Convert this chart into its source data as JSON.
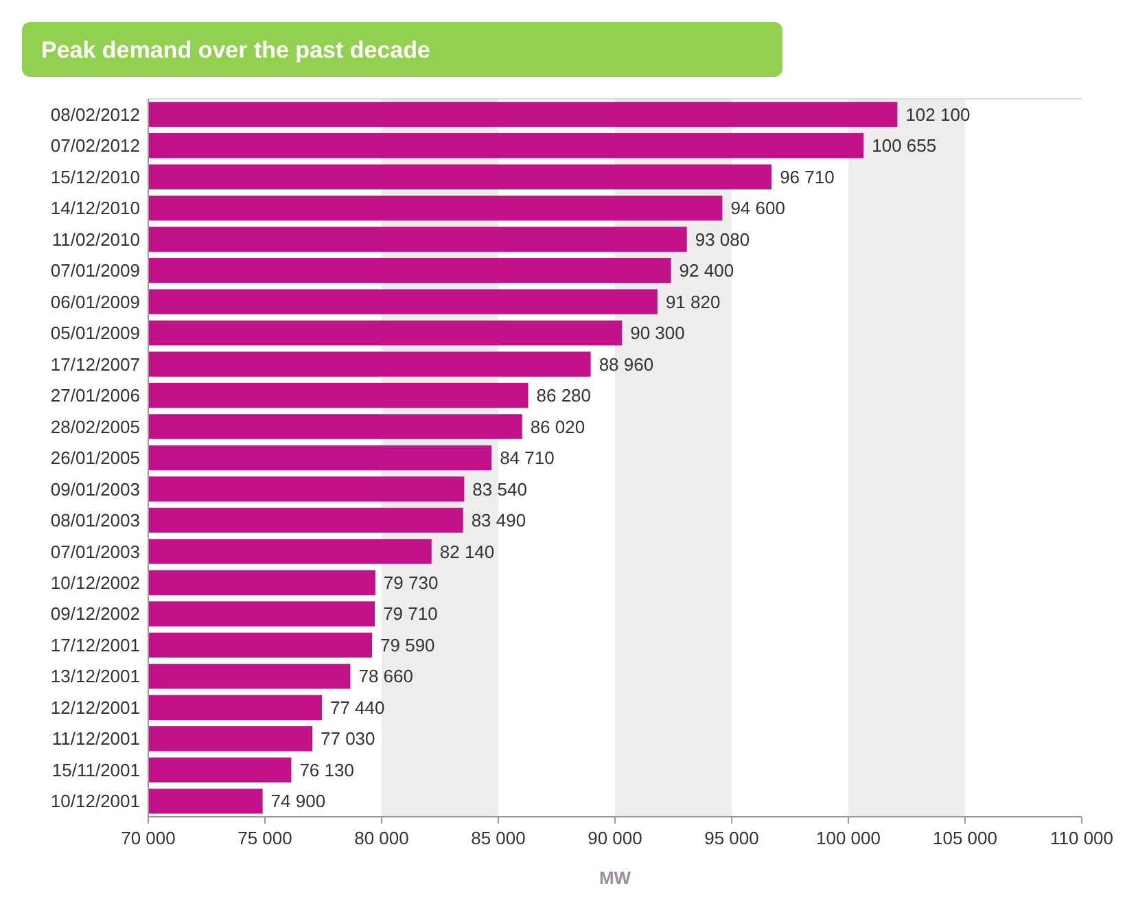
{
  "chart_data": {
    "type": "bar",
    "orientation": "horizontal",
    "title": "Peak demand over the past decade",
    "xlabel": "MW",
    "categories": [
      "08/02/2012",
      "07/02/2012",
      "15/12/2010",
      "14/12/2010",
      "11/02/2010",
      "07/01/2009",
      "06/01/2009",
      "05/01/2009",
      "17/12/2007",
      "27/01/2006",
      "28/02/2005",
      "26/01/2005",
      "09/01/2003",
      "08/01/2003",
      "07/01/2003",
      "10/12/2002",
      "09/12/2002",
      "17/12/2001",
      "13/12/2001",
      "12/12/2001",
      "11/12/2001",
      "15/11/2001",
      "10/12/2001"
    ],
    "values": [
      102100,
      100655,
      96710,
      94600,
      93080,
      92400,
      91820,
      90300,
      88960,
      86280,
      86020,
      84710,
      83540,
      83490,
      82140,
      79730,
      79710,
      79590,
      78660,
      77440,
      77030,
      76130,
      74900
    ],
    "value_labels": [
      "102 100",
      "100 655",
      "96 710",
      "94 600",
      "93 080",
      "92 400",
      "91 820",
      "90 300",
      "88 960",
      "86 280",
      "86 020",
      "84 710",
      "83 540",
      "83 490",
      "82 140",
      "79 730",
      "79 710",
      "79 590",
      "78 660",
      "77 440",
      "77 030",
      "76 130",
      "74 900"
    ],
    "color": "#c2128a",
    "xlim": [
      70000,
      110000
    ],
    "xticks": [
      {
        "value": 70000,
        "label": "70 000"
      },
      {
        "value": 75000,
        "label": "75 000"
      },
      {
        "value": 80000,
        "label": "80 000"
      },
      {
        "value": 85000,
        "label": "85 000"
      },
      {
        "value": 90000,
        "label": "90 000"
      },
      {
        "value": 95000,
        "label": "95 000"
      },
      {
        "value": 100000,
        "label": "100 000"
      },
      {
        "value": 105000,
        "label": "105 000"
      },
      {
        "value": 110000,
        "label": "110 000"
      }
    ],
    "bands": [
      {
        "axis": "x",
        "from": 80000,
        "to": 85000,
        "color": "#eeecec"
      },
      {
        "axis": "x",
        "from": 90000,
        "to": 95000,
        "color": "#eeecec"
      },
      {
        "axis": "x",
        "from": 100000,
        "to": 105000,
        "color": "#eeecec"
      }
    ]
  }
}
